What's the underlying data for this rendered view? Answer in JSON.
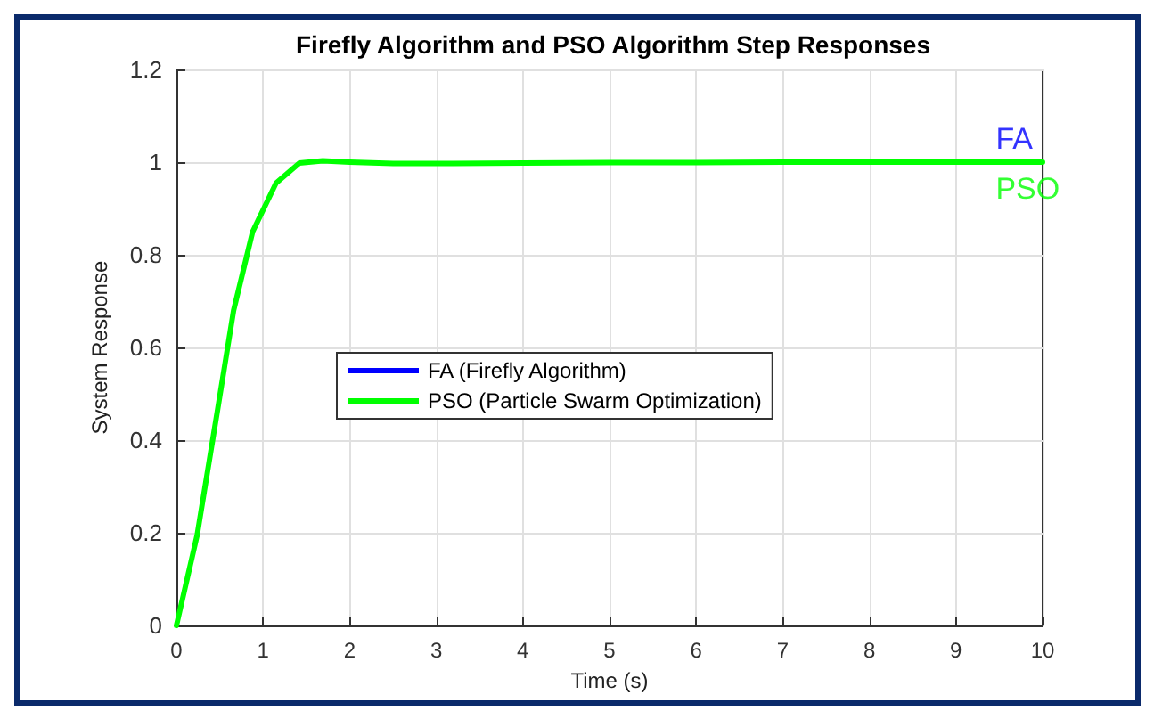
{
  "chart_data": {
    "type": "line",
    "title": "Firefly Algorithm and PSO Algorithm Step Responses",
    "xlabel": "Time (s)",
    "ylabel": "System Response",
    "x": [
      0,
      0.24,
      0.47,
      0.66,
      0.88,
      1.15,
      1.42,
      1.69,
      2.0,
      2.5,
      3.0,
      4.0,
      5.0,
      6.0,
      7.0,
      8.0,
      9.0,
      10.0
    ],
    "series": [
      {
        "name": "FA (Firefly Algorithm)",
        "color": "#0000ff",
        "values": [
          null,
          null,
          null,
          null,
          null,
          null,
          null,
          null,
          null,
          null,
          null,
          null,
          null,
          null,
          null,
          null,
          null,
          null
        ]
      },
      {
        "name": "PSO (Particle Swarm Optimization)",
        "color": "#00ff00",
        "values": [
          0,
          0.196,
          0.46,
          0.68,
          0.85,
          0.955,
          0.998,
          1.003,
          1.0,
          0.997,
          0.997,
          0.998,
          0.999,
          0.999,
          1.0,
          1.0,
          1.0,
          1.0
        ]
      }
    ],
    "annotations": [
      {
        "text": "FA",
        "x": 9.5,
        "y": 1
      },
      {
        "text": "PSO",
        "x": 9.5,
        "y": 1
      }
    ],
    "xlim": [
      0,
      10
    ],
    "xticks": [
      0,
      1,
      2,
      3,
      4,
      5,
      6,
      7,
      8,
      9,
      10
    ],
    "ylim": [
      0,
      1.2
    ],
    "yticks": [
      0,
      0.2,
      0.4,
      0.6,
      0.8,
      1,
      1.2
    ],
    "grid": true,
    "legend": "left",
    "marker": "none",
    "line_style": "solid"
  }
}
